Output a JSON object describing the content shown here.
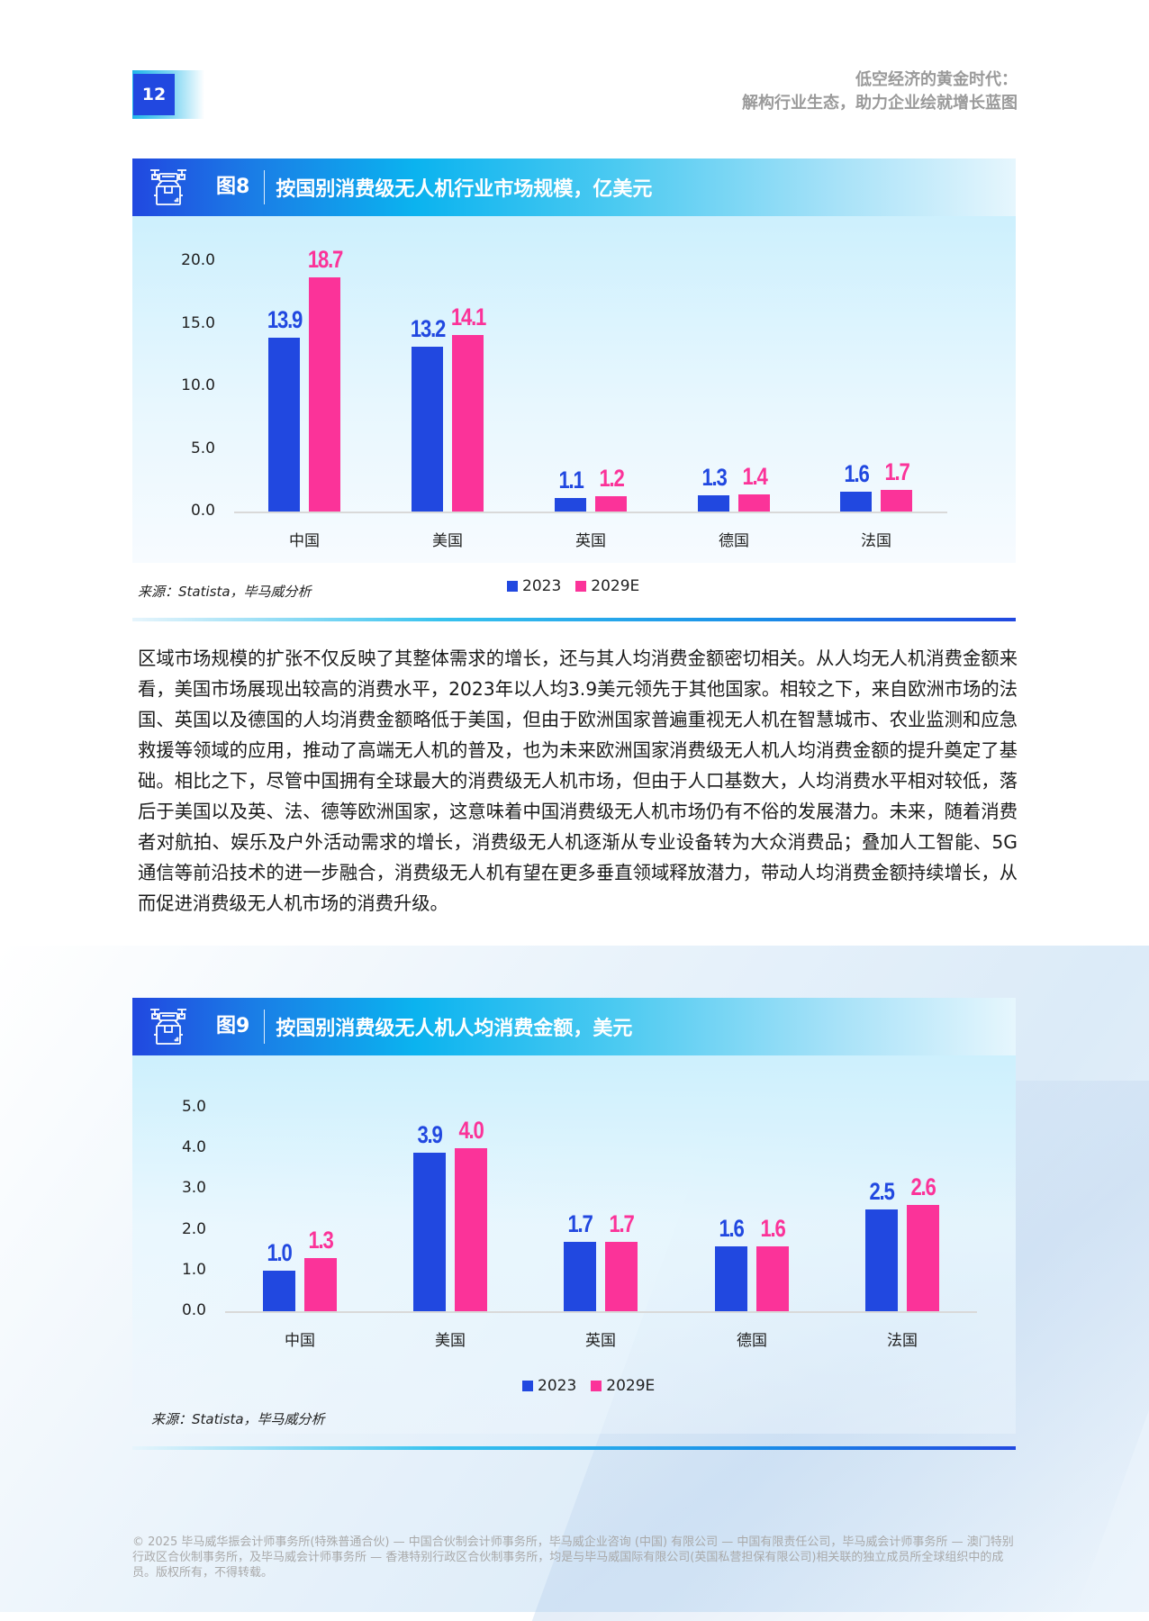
{
  "page": {
    "number": "12",
    "running_title": [
      "低空经济的黄金时代：",
      "解构行业生态，助力企业绘就增长蓝图"
    ]
  },
  "figure8": {
    "label": "图8",
    "title": "按国别消费级无人机行业市场规模，亿美元",
    "icon": "drone-package-icon",
    "source": "来源：Statista，毕马威分析",
    "legend": [
      "2023",
      "2029E"
    ]
  },
  "paragraph": "区域市场规模的扩张不仅反映了其整体需求的增长，还与其人均消费金额密切相关。从人均无人机消费金额来看，美国市场展现出较高的消费水平，2023年以人均3.9美元领先于其他国家。相较之下，来自欧洲市场的法国、英国以及德国的人均消费金额略低于美国，但由于欧洲国家普遍重视无人机在智慧城市、农业监测和应急救援等领域的应用，推动了高端无人机的普及，也为未来欧洲国家消费级无人机人均消费金额的提升奠定了基础。相比之下，尽管中国拥有全球最大的消费级无人机市场，但由于人口基数大，人均消费水平相对较低，落后于美国以及英、法、德等欧洲国家，这意味着中国消费级无人机市场仍有不俗的发展潜力。未来，随着消费者对航拍、娱乐及户外活动需求的增长，消费级无人机逐渐从专业设备转为大众消费品；叠加人工智能、5G通信等前沿技术的进一步融合，消费级无人机有望在更多垂直领域释放潜力，带动人均消费金额持续增长，从而促进消费级无人机市场的消费升级。",
  "figure9": {
    "label": "图9",
    "title": "按国别消费级无人机人均消费金额，美元",
    "icon": "drone-package-icon",
    "source": "来源：Statista，毕马威分析",
    "legend": [
      "2023",
      "2029E"
    ]
  },
  "footer": "© 2025 毕马威华振会计师事务所(特殊普通合伙) — 中国合伙制会计师事务所，毕马威企业咨询 (中国) 有限公司 — 中国有限责任公司，毕马威会计师事务所 — 澳门特别行政区合伙制事务所，及毕马威会计师事务所 — 香港特别行政区合伙制事务所，均是与毕马威国际有限公司(英国私营担保有限公司)相关联的独立成员所全球组织中的成员。版权所有，不得转载。",
  "colors": {
    "series_2023": "#2148e0",
    "series_2029E": "#fb3399",
    "brand_blue": "#2148e0",
    "accent_cyan": "#0bb3ef"
  },
  "chart_data": [
    {
      "type": "bar",
      "title": "按国别消费级无人机行业市场规模，亿美元",
      "xlabel": "",
      "ylabel": "亿美元",
      "categories": [
        "中国",
        "美国",
        "英国",
        "德国",
        "法国"
      ],
      "series": [
        {
          "name": "2023",
          "values": [
            13.9,
            13.2,
            1.1,
            1.3,
            1.6
          ],
          "color": "#2148e0",
          "labels": [
            "13.9",
            "13.2",
            "1.1",
            "1.3",
            "1.6"
          ]
        },
        {
          "name": "2029E",
          "values": [
            18.7,
            14.1,
            1.2,
            1.4,
            1.7
          ],
          "color": "#fb3399",
          "labels": [
            "18.7",
            "14.1",
            "1.2",
            "1.4",
            "1.7"
          ]
        }
      ],
      "yticks": [
        "20.0",
        "15.0",
        "10.0",
        "5.0",
        "0.0"
      ],
      "ylim": [
        0,
        20
      ],
      "grid": false,
      "legend_position": "bottom"
    },
    {
      "type": "bar",
      "title": "按国别消费级无人机人均消费金额，美元",
      "xlabel": "",
      "ylabel": "美元",
      "categories": [
        "中国",
        "美国",
        "英国",
        "德国",
        "法国"
      ],
      "series": [
        {
          "name": "2023",
          "values": [
            1.0,
            3.9,
            1.7,
            1.6,
            2.5
          ],
          "color": "#2148e0",
          "labels": [
            "1.0",
            "3.9",
            "1.7",
            "1.6",
            "2.5"
          ]
        },
        {
          "name": "2029E",
          "values": [
            1.3,
            4.0,
            1.7,
            1.6,
            2.6
          ],
          "color": "#fb3399",
          "labels": [
            "1.3",
            "4.0",
            "1.7",
            "1.6",
            "2.6"
          ]
        }
      ],
      "yticks": [
        "5.0",
        "4.0",
        "3.0",
        "2.0",
        "1.0",
        "0.0"
      ],
      "ylim": [
        0,
        5
      ],
      "grid": false,
      "legend_position": "bottom"
    }
  ]
}
